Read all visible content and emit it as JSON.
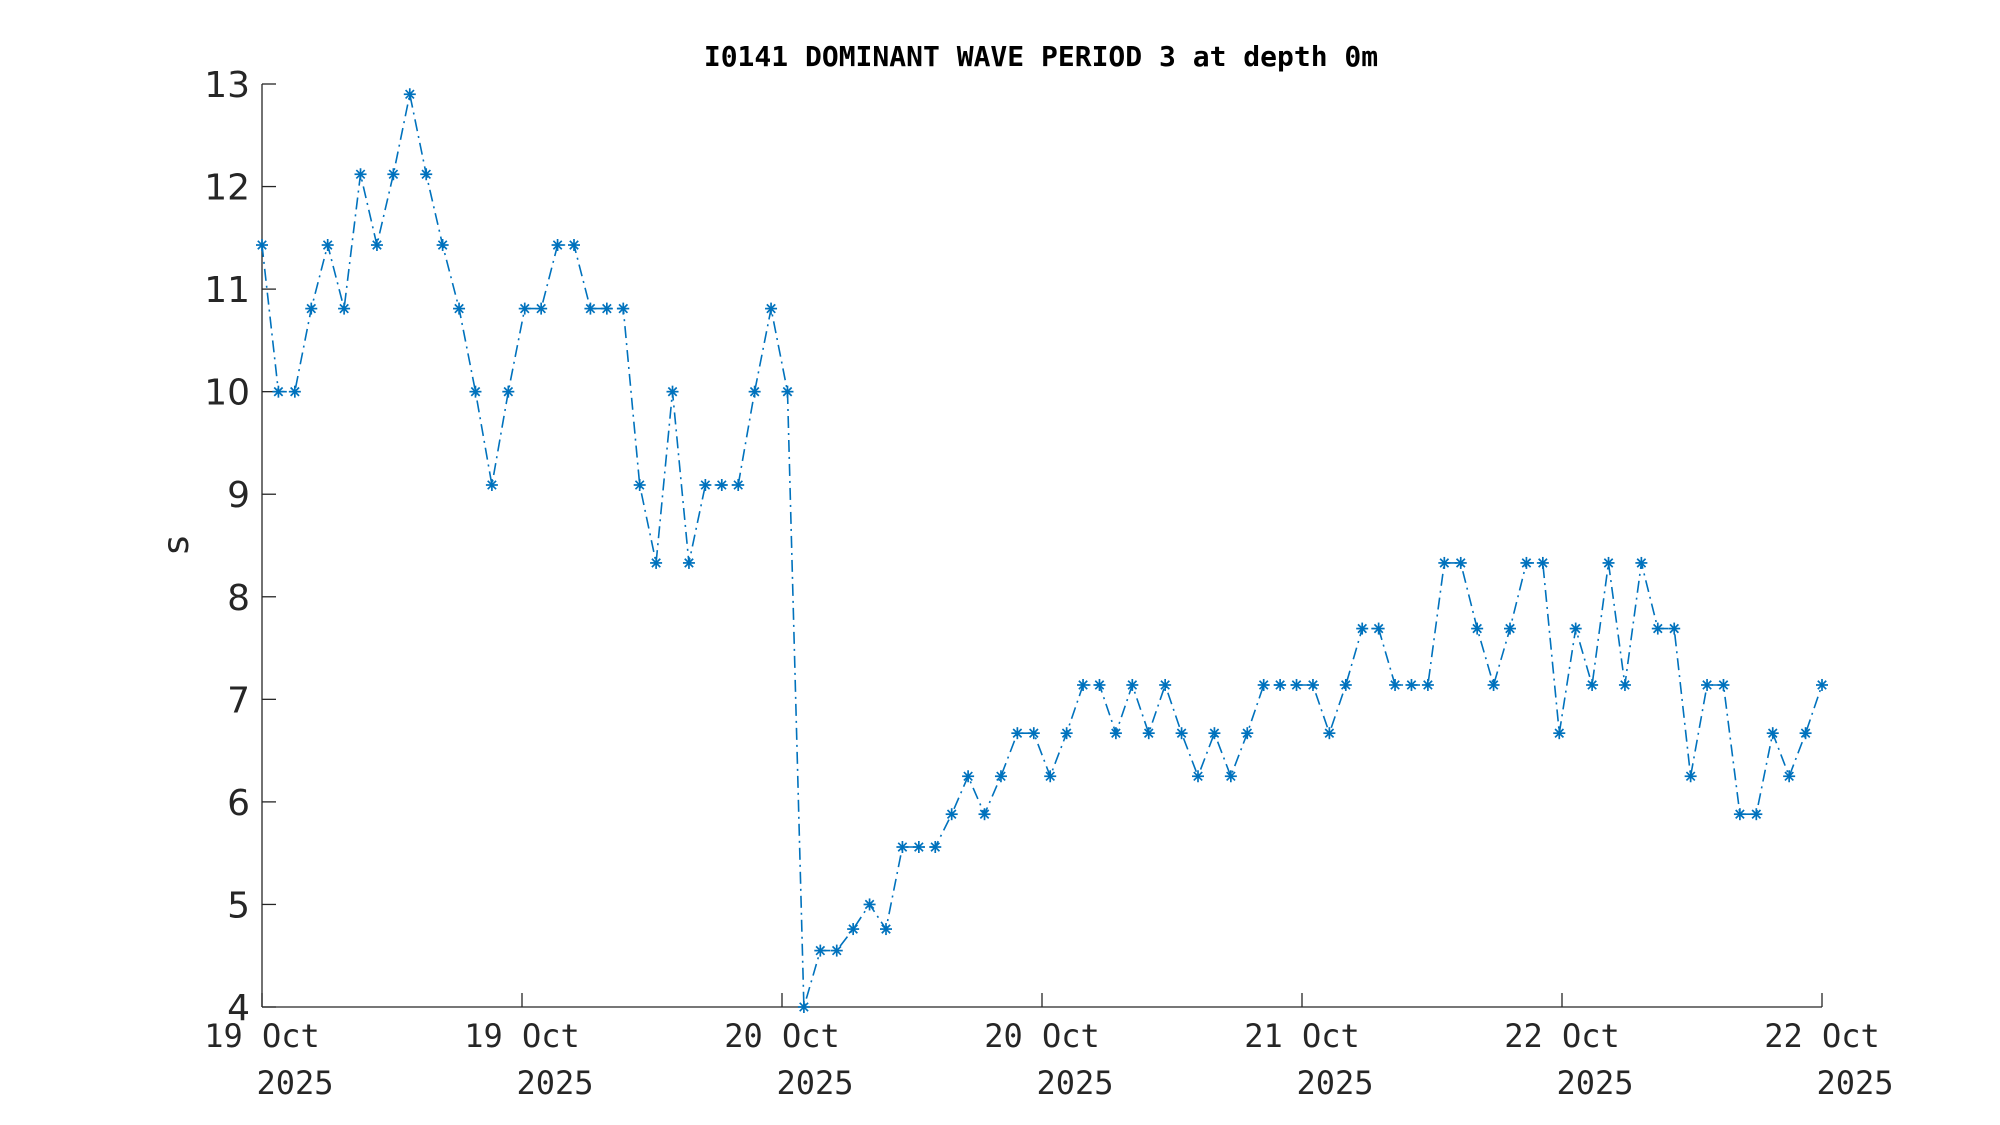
{
  "chart_data": {
    "type": "line",
    "title": "I0141 DOMINANT WAVE PERIOD 3 at depth 0m",
    "xlabel": "",
    "ylabel": "s",
    "ylim": [
      4,
      13
    ],
    "yticks": [
      "4",
      "5",
      "6",
      "7",
      "8",
      "9",
      "10",
      "11",
      "12",
      "13"
    ],
    "xticks": [
      {
        "day": "19 Oct",
        "year": "2025"
      },
      {
        "day": "19 Oct",
        "year": "2025"
      },
      {
        "day": "20 Oct",
        "year": "2025"
      },
      {
        "day": "20 Oct",
        "year": "2025"
      },
      {
        "day": "21 Oct",
        "year": "2025"
      },
      {
        "day": "22 Oct",
        "year": "2025"
      },
      {
        "day": "22 Oct",
        "year": "2025"
      }
    ],
    "grid": false,
    "line_style": "dash-dot",
    "marker": "asterisk",
    "color": "#0072BD",
    "series": [
      {
        "values": [
          11.43,
          10.0,
          10.0,
          10.81,
          11.43,
          10.81,
          12.12,
          11.43,
          12.12,
          12.9,
          12.12,
          11.43,
          10.81,
          10.0,
          9.09,
          10.0,
          10.81,
          10.81,
          11.43,
          11.43,
          10.81,
          10.81,
          10.81,
          9.09,
          8.33,
          10.0,
          8.33,
          9.09,
          9.09,
          9.09,
          10.0,
          10.81,
          10.0,
          4.0,
          4.55,
          4.55,
          4.76,
          5.0,
          4.76,
          5.56,
          5.56,
          5.56,
          5.88,
          6.25,
          5.88,
          6.25,
          6.67,
          6.67,
          6.25,
          6.67,
          7.14,
          7.14,
          6.67,
          7.14,
          6.67,
          7.14,
          6.67,
          6.25,
          6.67,
          6.25,
          6.67,
          7.14,
          7.14,
          7.14,
          7.14,
          6.67,
          7.14,
          7.69,
          7.69,
          7.14,
          7.14,
          7.14,
          8.33,
          8.33,
          7.69,
          7.14,
          7.69,
          8.33,
          8.33,
          6.67,
          7.69,
          7.14,
          8.33,
          7.14,
          8.33,
          7.69,
          7.69,
          6.25,
          7.14,
          7.14,
          5.88,
          5.88,
          6.67,
          6.25,
          6.67,
          7.14
        ]
      }
    ]
  }
}
